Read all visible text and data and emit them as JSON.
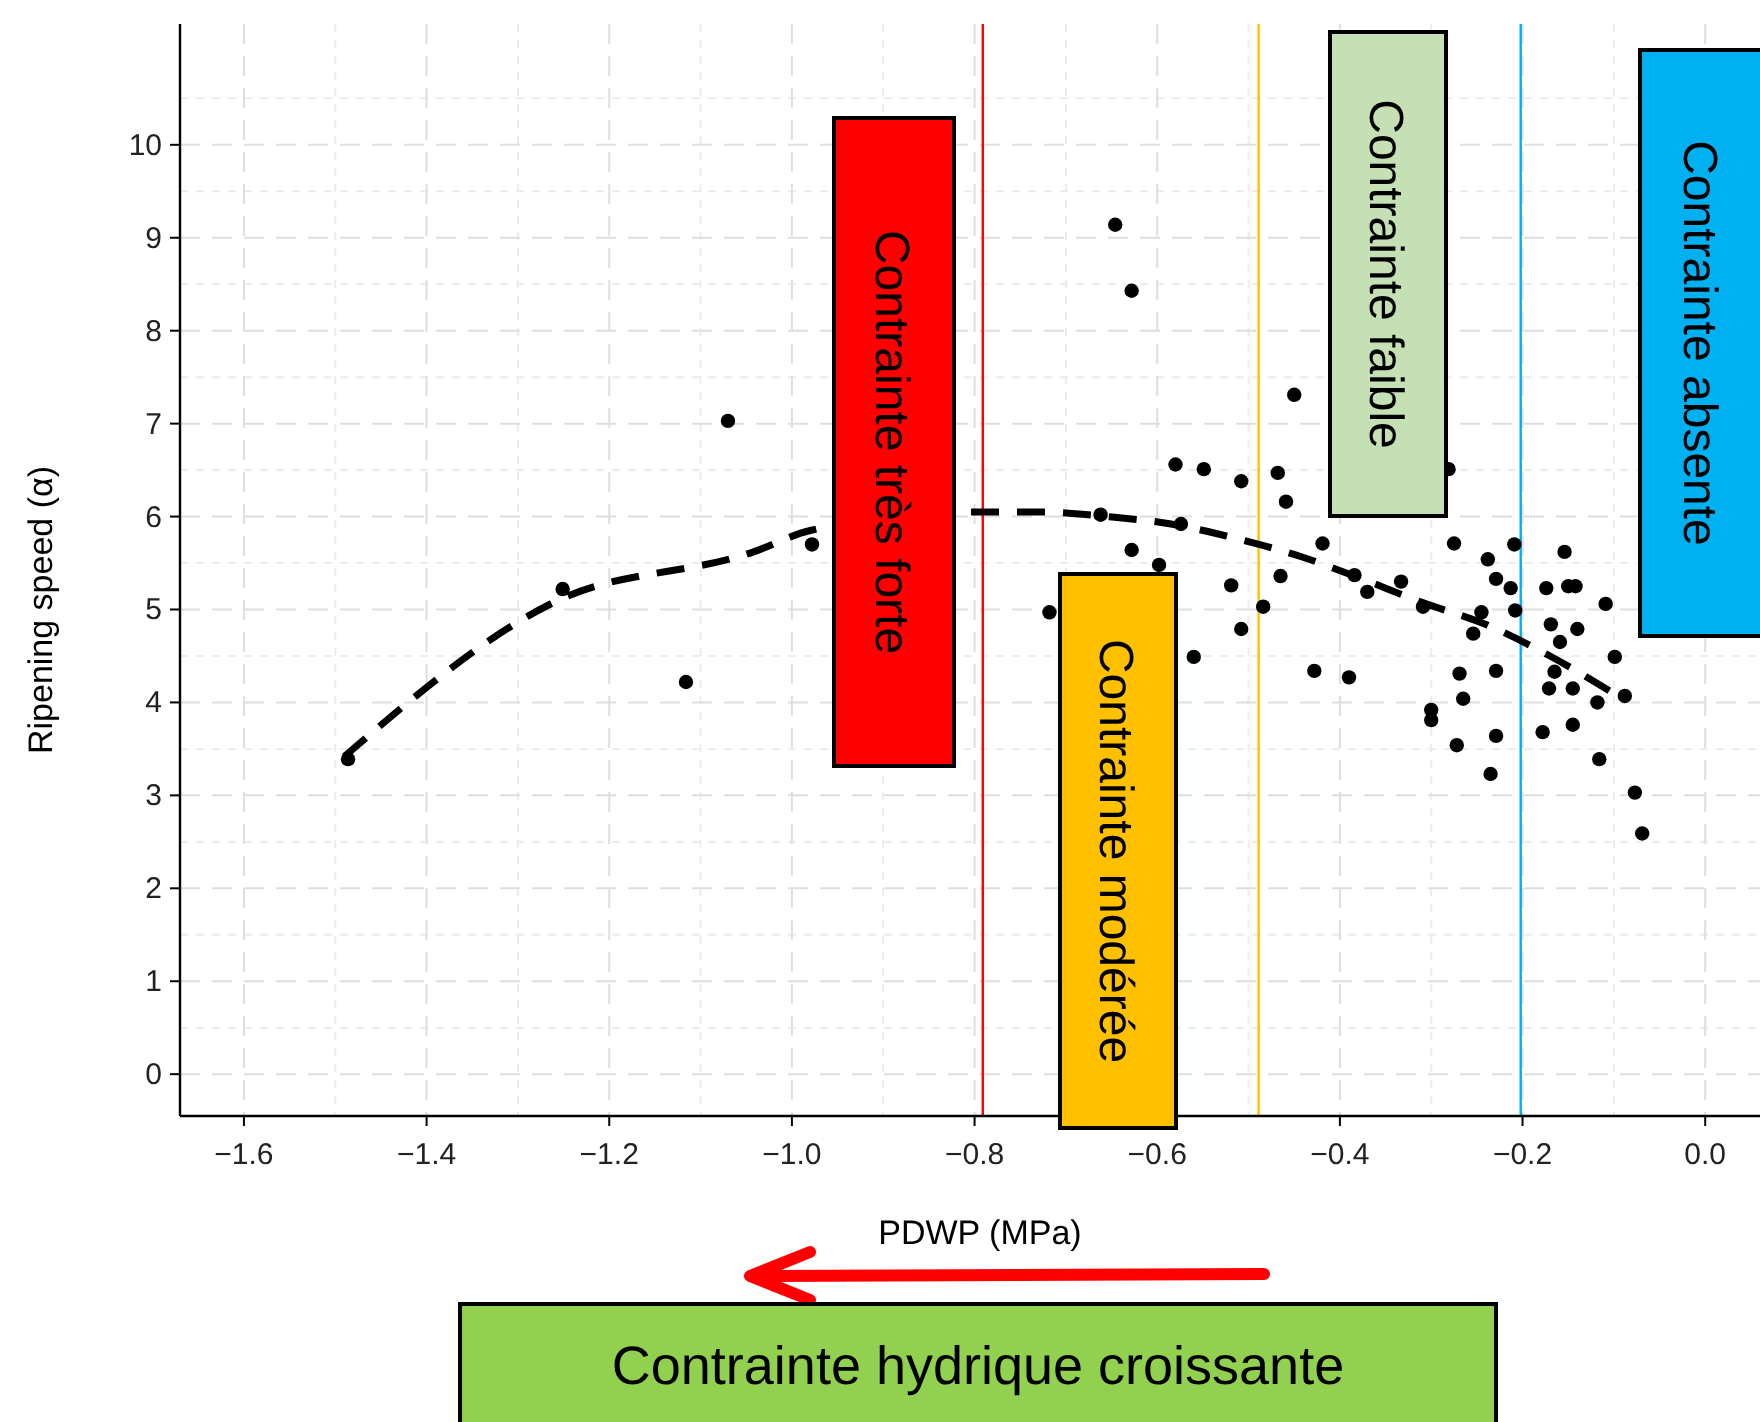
{
  "chart_data": {
    "type": "scatter",
    "xlabel": "PDWP (MPa)",
    "ylabel": "Ripening speed (α)",
    "xlim": [
      -1.67,
      0.06
    ],
    "ylim": [
      -0.45,
      11.3
    ],
    "xticks": [
      {
        "value": -1.6,
        "label": "−1.6"
      },
      {
        "value": -1.4,
        "label": "−1.4"
      },
      {
        "value": -1.2,
        "label": "−1.2"
      },
      {
        "value": -1.0,
        "label": "−1.0"
      },
      {
        "value": -0.8,
        "label": "−0.8"
      },
      {
        "value": -0.6,
        "label": "−0.6"
      },
      {
        "value": -0.4,
        "label": "−0.4"
      },
      {
        "value": -0.2,
        "label": "−0.2"
      },
      {
        "value": 0,
        "label": "0.0"
      }
    ],
    "yticks": [
      0,
      1,
      2,
      3,
      4,
      5,
      6,
      7,
      8,
      9,
      10
    ],
    "grid": true,
    "series": [
      {
        "type": "scatter",
        "color": "#000000",
        "marker": "circle",
        "x": [
          -1.486,
          -1.251,
          -1.116,
          -1.07,
          -0.978,
          -0.718,
          -0.662,
          -0.646,
          -0.628,
          -0.628,
          -0.598,
          -0.58,
          -0.574,
          -0.56,
          -0.549,
          -0.519,
          -0.508,
          -0.508,
          -0.484,
          -0.468,
          -0.465,
          -0.459,
          -0.45,
          -0.428,
          -0.419,
          -0.39,
          -0.384,
          -0.37,
          -0.333,
          -0.309,
          -0.3,
          -0.3,
          -0.281,
          -0.275,
          -0.272,
          -0.269,
          -0.265,
          -0.254,
          -0.245,
          -0.238,
          -0.235,
          -0.229,
          -0.229,
          -0.229,
          -0.213,
          -0.209,
          -0.208,
          -0.178,
          -0.174,
          -0.171,
          -0.169,
          -0.165,
          -0.159,
          -0.154,
          -0.15,
          -0.145,
          -0.145,
          -0.142,
          -0.14,
          -0.118,
          -0.116,
          -0.109,
          -0.099,
          -0.088,
          -0.077,
          -0.069
        ],
        "values": [
          3.39,
          5.22,
          4.22,
          7.03,
          5.7,
          4.97,
          6.02,
          9.14,
          8.43,
          5.64,
          5.48,
          6.56,
          5.92,
          4.49,
          6.51,
          5.26,
          6.38,
          4.79,
          5.03,
          6.47,
          5.36,
          6.16,
          7.31,
          4.34,
          5.71,
          4.27,
          5.37,
          5.19,
          5.3,
          5.03,
          3.92,
          3.81,
          6.51,
          5.71,
          3.54,
          4.31,
          4.04,
          4.74,
          4.97,
          5.54,
          3.23,
          5.33,
          4.34,
          3.64,
          5.23,
          5.7,
          4.99,
          3.68,
          5.23,
          4.15,
          4.84,
          4.33,
          4.65,
          5.62,
          5.25,
          4.15,
          3.76,
          5.25,
          4.79,
          4.0,
          3.39,
          5.06,
          4.49,
          4.07,
          3.03,
          2.59
        ]
      },
      {
        "type": "line",
        "color": "#000000",
        "marker": "none",
        "line_style": "dashed",
        "x": [
          -1.49,
          -1.26,
          -1.042,
          -0.98,
          -0.8,
          -0.728,
          -0.655,
          -0.585,
          -0.516,
          -0.443,
          -0.384,
          -0.311,
          -0.238,
          -0.172,
          -0.114,
          -0.088
        ],
        "values": [
          3.42,
          5.08,
          5.62,
          5.85,
          6.05,
          6.05,
          6.0,
          5.92,
          5.77,
          5.57,
          5.36,
          5.08,
          4.83,
          4.51,
          4.18,
          4.02
        ]
      }
    ],
    "ref_lines": [
      {
        "axis": "x",
        "value": -0.791,
        "color": "#ff0000"
      },
      {
        "axis": "x",
        "value": -0.489,
        "color": "#ffc000"
      },
      {
        "axis": "x",
        "value": -0.202,
        "color": "#00b0f0"
      }
    ],
    "annotations": [
      "Contrainte très forte",
      "Contrainte modérée",
      "Contrainte faible",
      "Contrainte absente",
      "Contrainte hydrique croissante"
    ]
  }
}
